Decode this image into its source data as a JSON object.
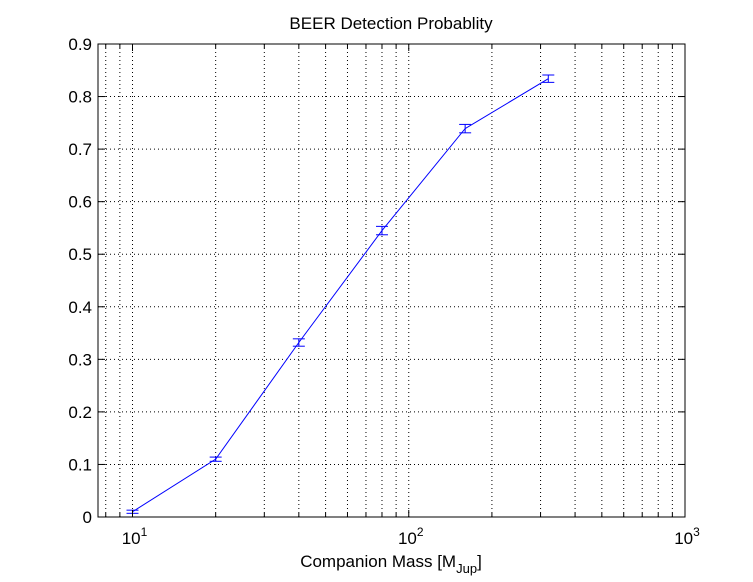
{
  "chart_data": {
    "type": "line",
    "title": "BEER Detection Probablity",
    "xlabel": "Companion Mass [M",
    "xlabel_sub": "Jup",
    "xlabel_close": "]",
    "ylabel": "",
    "xscale": "log",
    "xlim": [
      7.5,
      1000
    ],
    "ylim": [
      0,
      0.9
    ],
    "grid": true,
    "grid_style": "dotted",
    "legend": "none",
    "x_ticks": [
      {
        "value": 10,
        "base": "10",
        "exp": "1"
      },
      {
        "value": 100,
        "base": "10",
        "exp": "2"
      },
      {
        "value": 1000,
        "base": "10",
        "exp": "3"
      }
    ],
    "y_ticks": [
      "0",
      "0.1",
      "0.2",
      "0.3",
      "0.4",
      "0.5",
      "0.6",
      "0.7",
      "0.8",
      "0.9"
    ],
    "series": [
      {
        "color": "#0000ff",
        "x": [
          10,
          20,
          40,
          80,
          160,
          320
        ],
        "y": [
          0.01,
          0.11,
          0.332,
          0.545,
          0.739,
          0.834
        ],
        "err": [
          0.003,
          0.004,
          0.007,
          0.008,
          0.008,
          0.007
        ]
      }
    ]
  }
}
